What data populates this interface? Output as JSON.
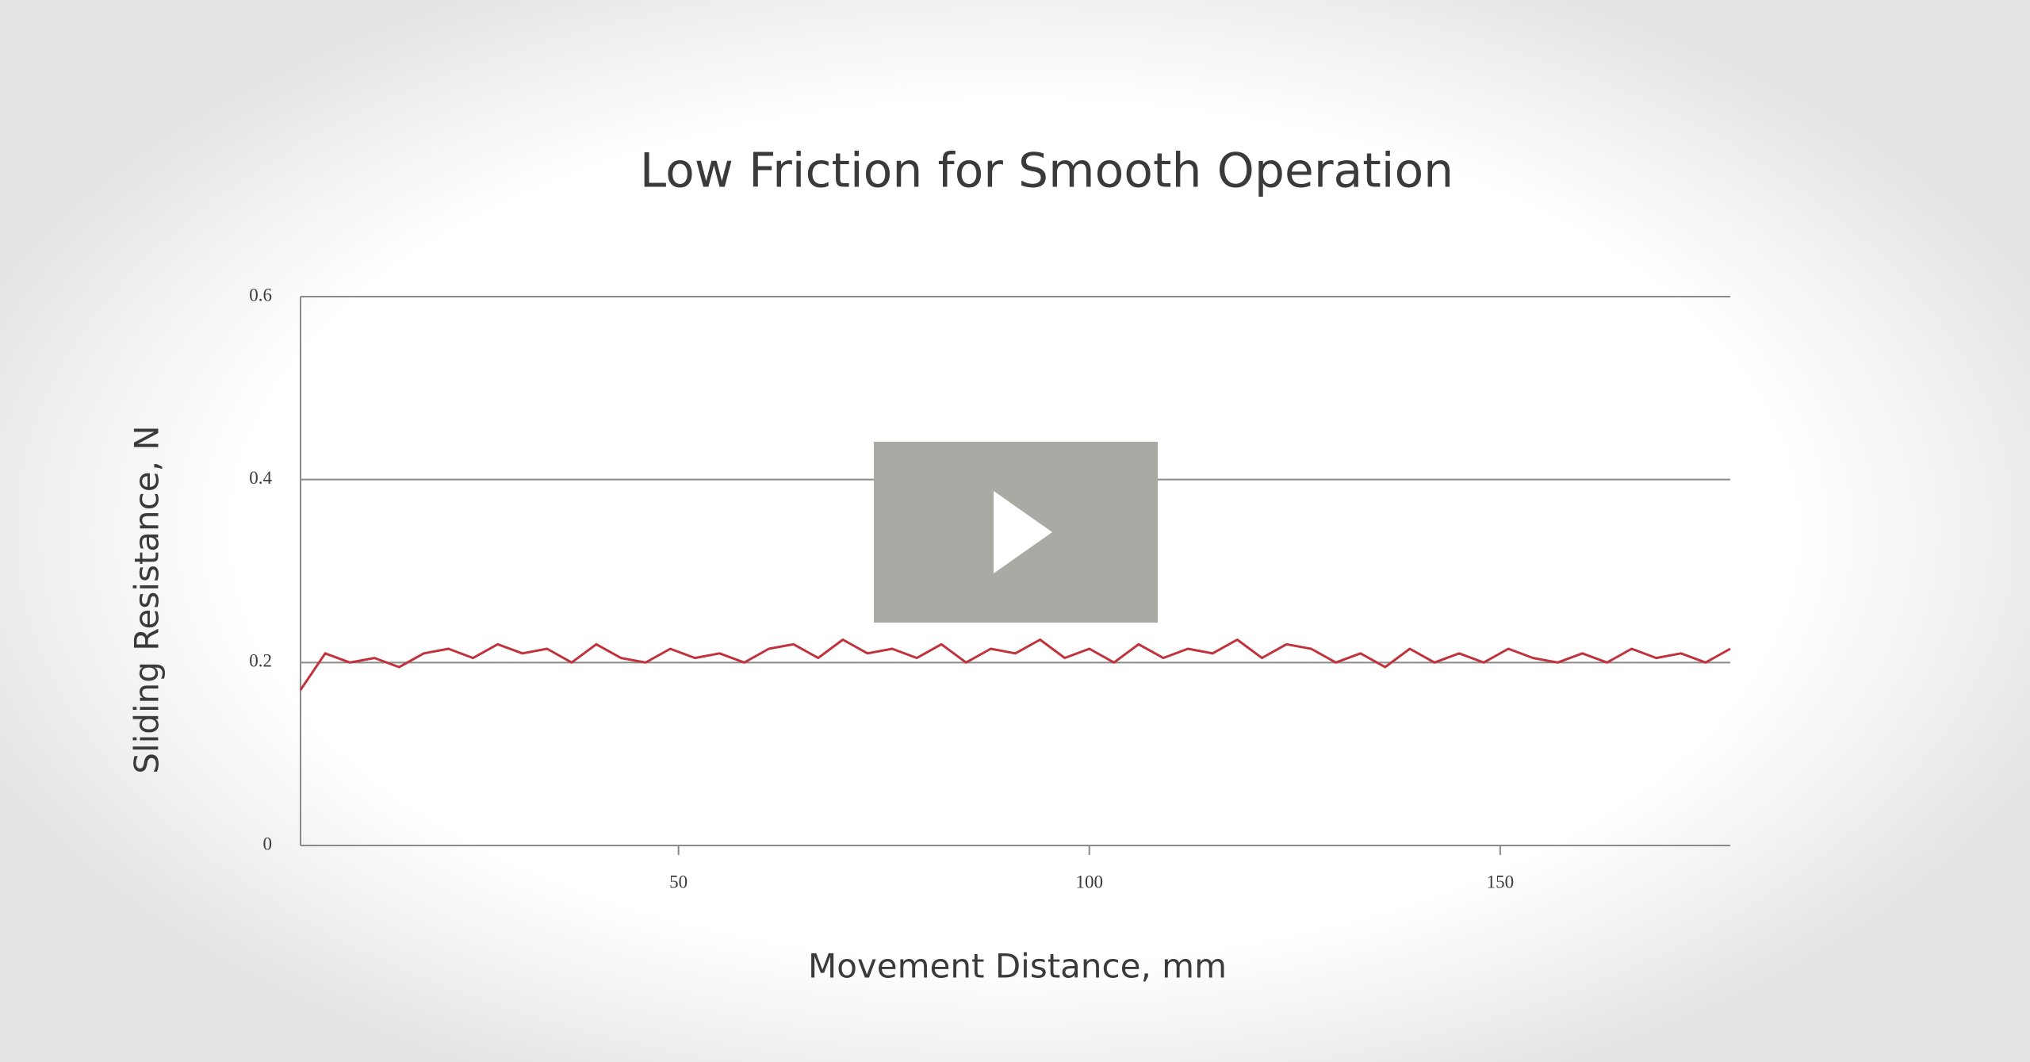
{
  "chart_data": {
    "type": "line",
    "title": "Low Friction for Smooth Operation",
    "y_label": "Sliding Resistance, N",
    "x_label": "Movement Distance, mm",
    "x": [
      4,
      7,
      10,
      13,
      16,
      19,
      22,
      25,
      28,
      31,
      34,
      37,
      40,
      43,
      46,
      49,
      52,
      55,
      58,
      61,
      64,
      67,
      70,
      73,
      76,
      79,
      82,
      85,
      88,
      91,
      94,
      97,
      100,
      103,
      106,
      109,
      112,
      115,
      118,
      121,
      124,
      127,
      130,
      133,
      136,
      139,
      142,
      145,
      148,
      151,
      154,
      157,
      160,
      163,
      166,
      169,
      172,
      175,
      178
    ],
    "values": [
      0.17,
      0.21,
      0.2,
      0.205,
      0.195,
      0.21,
      0.215,
      0.205,
      0.22,
      0.21,
      0.215,
      0.2,
      0.22,
      0.205,
      0.2,
      0.215,
      0.205,
      0.21,
      0.2,
      0.215,
      0.22,
      0.205,
      0.225,
      0.21,
      0.215,
      0.205,
      0.22,
      0.2,
      0.215,
      0.21,
      0.225,
      0.205,
      0.215,
      0.2,
      0.22,
      0.205,
      0.215,
      0.21,
      0.225,
      0.205,
      0.22,
      0.215,
      0.2,
      0.21,
      0.195,
      0.215,
      0.2,
      0.21,
      0.2,
      0.215,
      0.205,
      0.2,
      0.21,
      0.2,
      0.215,
      0.205,
      0.21,
      0.2,
      0.215
    ],
    "color": "#c0323c",
    "xlim": [
      4,
      178
    ],
    "xticks": [
      50,
      100,
      150
    ],
    "ylim": [
      0,
      0.6
    ],
    "yticks": [
      0,
      0.2,
      0.4,
      0.6
    ],
    "grid": true
  }
}
